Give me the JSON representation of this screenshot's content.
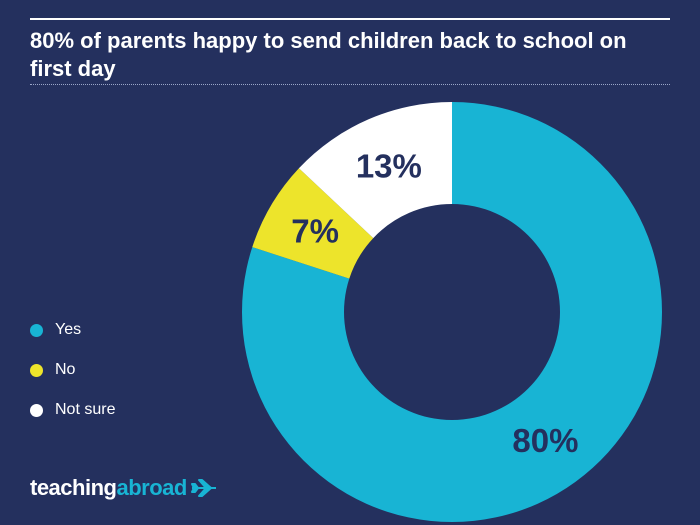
{
  "chart_data": {
    "type": "pie",
    "style": "donut",
    "title": "80% of parents happy to send children back to school on first day",
    "categories": [
      "Yes",
      "No",
      "Not sure"
    ],
    "values": [
      80,
      7,
      13
    ],
    "value_labels": [
      "80%",
      "7%",
      "13%"
    ],
    "colors": [
      "#18b4d4",
      "#ede42b",
      "#ffffff"
    ],
    "legend_position": "left"
  },
  "theme": {
    "background": "#24305e",
    "label_color": "#24305e",
    "accent": "#18b4d4"
  },
  "brand": {
    "part1": "teaching",
    "part2": "abroad",
    "icon": "airplane-icon"
  }
}
